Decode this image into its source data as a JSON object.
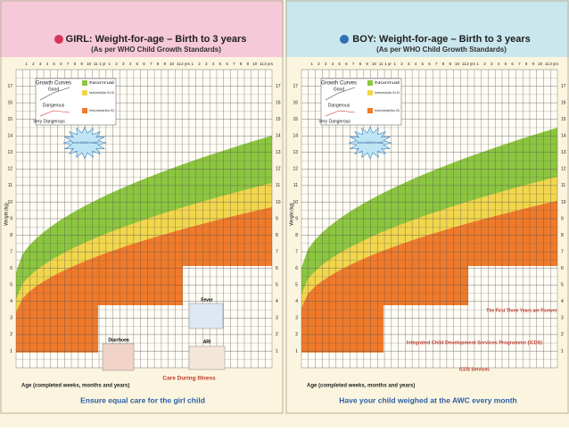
{
  "panels": [
    {
      "title": "GIRL: Weight-for-age – Birth to 3 years",
      "subtitle": "(As per WHO Child Growth Standards)",
      "y_axis_label": "Weight (kg)",
      "x_axis_label": "Age (completed weeks, months and years)",
      "footer": "Ensure equal care for the girl child",
      "legend": [
        "Growth Curves",
        "Good",
        "Dangerous",
        "Very Dangerous",
        "Normal",
        "Moderately Underweight (Below -2SD to -3SD)",
        "Severely Underweight (Below -3SD)"
      ],
      "starburst": "Talk to the ANM/AWW Immediately",
      "notes": [
        "Fever",
        "Diarrhoea",
        "ARI",
        "Care During Illness"
      ]
    },
    {
      "title": "BOY: Weight-for-age – Birth to 3 years",
      "subtitle": "(As per WHO Child Growth Standards)",
      "y_axis_label": "Weight (kg)",
      "x_axis_label": "Age (completed weeks, months and years)",
      "footer": "Have your child weighed at the AWC every month",
      "legend": [
        "Growth Curves",
        "Good",
        "Dangerous",
        "Very Dangerous",
        "Normal",
        "Moderately Underweight (Below -2SD to -3SD)",
        "Severely Underweight (Below -3SD)"
      ],
      "starburst": "Talk to the ANM/AWW Immediately",
      "notes": [
        "The First Three Years are Forever",
        "Integrated Child Development Services Programme (ICDS)",
        "ICDS Services"
      ]
    }
  ],
  "x_labels": [
    "1",
    "2",
    "3",
    "4",
    "5",
    "6",
    "7",
    "8",
    "9",
    "10",
    "11",
    "1 yr",
    "1",
    "2",
    "3",
    "4",
    "5",
    "6",
    "7",
    "8",
    "9",
    "10",
    "11",
    "2 yrs",
    "1",
    "2",
    "3",
    "4",
    "5",
    "6",
    "7",
    "8",
    "9",
    "10",
    "11",
    "3 yrs"
  ],
  "y_ticks": [
    "1",
    "2",
    "3",
    "4",
    "5",
    "6",
    "7",
    "8",
    "9",
    "10",
    "11",
    "12",
    "13",
    "14",
    "15",
    "16",
    "17"
  ]
}
